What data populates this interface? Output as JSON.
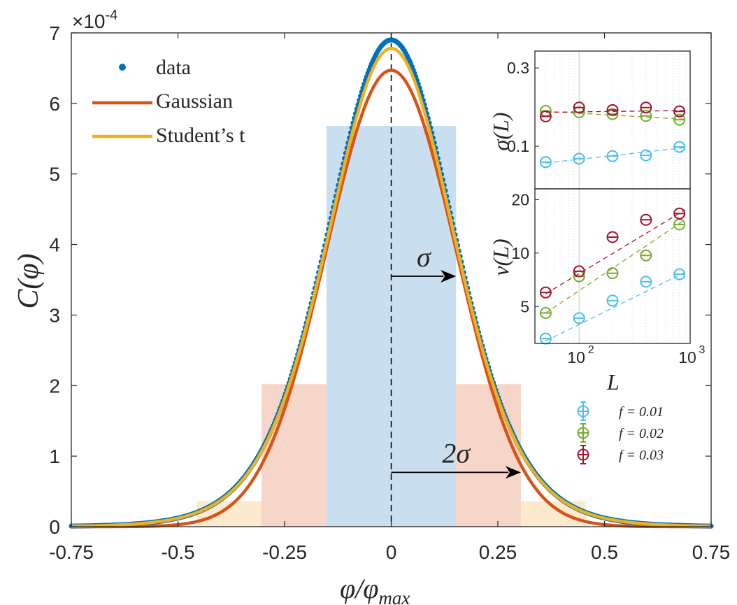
{
  "chart_data": [
    {
      "type": "line",
      "xlabel": "φ/φ",
      "xlabel_sub": "max",
      "ylabel": "C(φ)",
      "y_exponent_label": "×10",
      "y_exponent_power": "-4",
      "xlim": [
        -0.75,
        0.75
      ],
      "ylim": [
        0,
        7
      ],
      "x_ticks": [
        -0.75,
        -0.5,
        -0.25,
        0,
        0.25,
        0.5,
        0.75
      ],
      "x_tick_labels": [
        "-0.75",
        "-0.5",
        "-0.25",
        "0",
        "0.25",
        "0.5",
        "0.75"
      ],
      "y_ticks": [
        0,
        1,
        2,
        3,
        4,
        5,
        6,
        7
      ],
      "y_tick_labels": [
        "0",
        "1",
        "2",
        "3",
        "4",
        "5",
        "6",
        "7"
      ],
      "grid": false,
      "legend_position": "top-left",
      "series": [
        {
          "name": "data",
          "style": "points",
          "color": "#0072BD",
          "sigma": 0.152,
          "nu": 10,
          "peak": 6.9
        },
        {
          "name": "Gaussian",
          "style": "line",
          "color": "#D95319",
          "sigma": 0.152,
          "peak": 6.47
        },
        {
          "name": "Student’s t",
          "style": "line",
          "color": "#EDB120",
          "sigma": 0.152,
          "nu": 10,
          "peak": 6.78
        }
      ],
      "bands": [
        {
          "x0": -0.152,
          "x1": 0.152,
          "height": 5.68,
          "color": "#C9DFF0"
        },
        {
          "x0": -0.304,
          "x1": -0.152,
          "height": 2.02,
          "color": "#F6D6C8"
        },
        {
          "x0": 0.152,
          "x1": 0.304,
          "height": 2.02,
          "color": "#F6D6C8"
        },
        {
          "x0": -0.456,
          "x1": -0.304,
          "height": 0.36,
          "color": "#FBEBCC"
        },
        {
          "x0": 0.304,
          "x1": 0.456,
          "height": 0.36,
          "color": "#FBEBCC"
        }
      ],
      "center_line_x": 0,
      "annotations": [
        {
          "label": "σ",
          "x_from": 0,
          "x_to": 0.152,
          "y": 3.55
        },
        {
          "label": "2σ",
          "x_from": 0,
          "x_to": 0.304,
          "y": 0.77
        }
      ]
    },
    {
      "type": "scatter",
      "panel": "inset-top",
      "ylabel": "σ(L)",
      "y_scale": "log",
      "ylim": [
        0.055,
        0.38
      ],
      "y_tick_labels": [
        "0.1",
        "0.3"
      ],
      "y_ticks": [
        0.1,
        0.3
      ],
      "x_scale": "log",
      "xlim": [
        40,
        1000
      ],
      "x": [
        50,
        100,
        200,
        400,
        800
      ],
      "series": [
        {
          "name": "f = 0.01",
          "color": "#4DBEEE",
          "values": [
            0.08,
            0.084,
            0.087,
            0.088,
            0.099
          ],
          "fit": [
            0.079,
            0.098
          ]
        },
        {
          "name": "f = 0.02",
          "color": "#77AC30",
          "values": [
            0.164,
            0.161,
            0.157,
            0.153,
            0.145
          ],
          "fit": [
            0.163,
            0.146
          ]
        },
        {
          "name": "f = 0.03",
          "color": "#A2142F",
          "values": [
            0.152,
            0.172,
            0.166,
            0.172,
            0.163
          ],
          "fit": [
            0.161,
            0.165
          ]
        }
      ]
    },
    {
      "type": "scatter",
      "panel": "inset-bottom",
      "xlabel": "L",
      "ylabel": "ν(L)",
      "y_scale": "log",
      "ylim": [
        3.1,
        23
      ],
      "y_ticks": [
        5,
        10,
        20
      ],
      "y_tick_labels": [
        "5",
        "10",
        "20"
      ],
      "x_scale": "log",
      "xlim": [
        40,
        1000
      ],
      "x_ticks": [
        100,
        1000
      ],
      "x_tick_labels": [
        "10",
        "10"
      ],
      "x_tick_powers": [
        "2",
        "3"
      ],
      "x": [
        50,
        100,
        200,
        400,
        800
      ],
      "legend_position": "bottom-right",
      "series": [
        {
          "name": "f = 0.01",
          "color": "#4DBEEE",
          "values": [
            3.3,
            4.3,
            5.4,
            6.9,
            7.6
          ],
          "fit": [
            3.2,
            7.8
          ]
        },
        {
          "name": "f = 0.02",
          "color": "#77AC30",
          "values": [
            4.6,
            7.4,
            7.7,
            9.7,
            14.5
          ],
          "fit": [
            4.6,
            15.4
          ]
        },
        {
          "name": "f = 0.03",
          "color": "#A2142F",
          "values": [
            6.0,
            7.9,
            12.3,
            15.4,
            16.7
          ],
          "fit": [
            5.9,
            17.5
          ]
        }
      ]
    }
  ]
}
